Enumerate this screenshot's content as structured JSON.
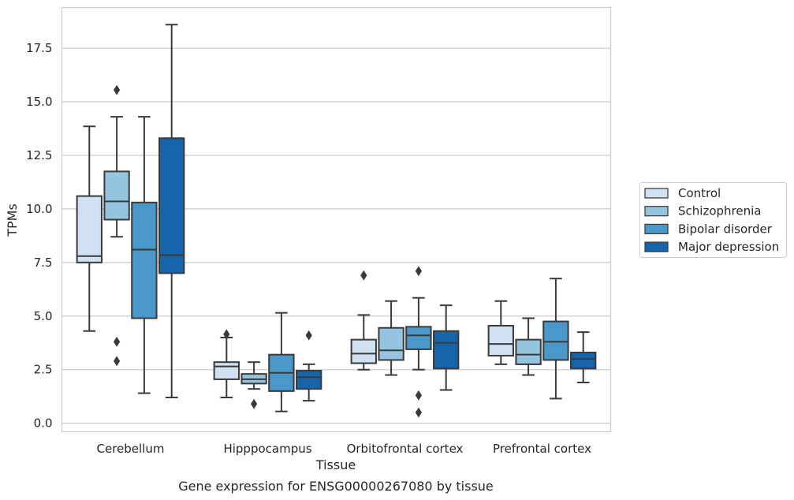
{
  "chart_data": {
    "type": "box",
    "title": "",
    "xlabel": "Tissue",
    "ylabel": "TPMs",
    "caption": "Gene expression for ENSG00000267080 by tissue",
    "ylim": [
      -0.4,
      19.4
    ],
    "yticks": [
      0.0,
      2.5,
      5.0,
      7.5,
      10.0,
      12.5,
      15.0,
      17.5
    ],
    "ytick_labels": [
      "0.0",
      "2.5",
      "5.0",
      "7.5",
      "10.0",
      "12.5",
      "15.0",
      "17.5"
    ],
    "categories": [
      "Cerebellum",
      "Hipppocampus",
      "Orbitofrontal cortex",
      "Prefrontal cortex"
    ],
    "grid": "horizontal",
    "legend_position": "right",
    "series": [
      {
        "name": "Control",
        "color": "#d0e1f2",
        "boxes": [
          {
            "whislo": 4.3,
            "q1": 7.5,
            "med": 7.8,
            "q3": 10.6,
            "whishi": 13.85,
            "fliers": []
          },
          {
            "whislo": 1.2,
            "q1": 2.05,
            "med": 2.65,
            "q3": 2.85,
            "whishi": 4.0,
            "fliers": [
              4.15
            ]
          },
          {
            "whislo": 2.5,
            "q1": 2.8,
            "med": 3.25,
            "q3": 3.9,
            "whishi": 5.05,
            "fliers": [
              6.9
            ]
          },
          {
            "whislo": 2.75,
            "q1": 3.15,
            "med": 3.7,
            "q3": 4.55,
            "whishi": 5.7,
            "fliers": []
          }
        ]
      },
      {
        "name": "Schizophrenia",
        "color": "#94c4df",
        "boxes": [
          {
            "whislo": 8.7,
            "q1": 9.5,
            "med": 10.35,
            "q3": 11.75,
            "whishi": 14.3,
            "fliers": [
              15.55,
              3.8,
              2.9
            ]
          },
          {
            "whislo": 1.6,
            "q1": 1.85,
            "med": 2.05,
            "q3": 2.3,
            "whishi": 2.85,
            "fliers": [
              0.9
            ]
          },
          {
            "whislo": 2.25,
            "q1": 2.95,
            "med": 3.4,
            "q3": 4.45,
            "whishi": 5.7,
            "fliers": []
          },
          {
            "whislo": 2.25,
            "q1": 2.75,
            "med": 3.2,
            "q3": 3.9,
            "whishi": 4.9,
            "fliers": []
          }
        ]
      },
      {
        "name": "Bipolar disorder",
        "color": "#4a98c9",
        "boxes": [
          {
            "whislo": 1.4,
            "q1": 4.9,
            "med": 8.1,
            "q3": 10.3,
            "whishi": 14.3,
            "fliers": []
          },
          {
            "whislo": 0.55,
            "q1": 1.5,
            "med": 2.35,
            "q3": 3.2,
            "whishi": 5.15,
            "fliers": []
          },
          {
            "whislo": 2.5,
            "q1": 3.45,
            "med": 4.1,
            "q3": 4.5,
            "whishi": 5.85,
            "fliers": [
              7.1,
              1.3,
              0.5
            ]
          },
          {
            "whislo": 1.15,
            "q1": 2.95,
            "med": 3.8,
            "q3": 4.75,
            "whishi": 6.75,
            "fliers": []
          }
        ]
      },
      {
        "name": "Major depression",
        "color": "#1764ab",
        "boxes": [
          {
            "whislo": 1.2,
            "q1": 7.0,
            "med": 7.85,
            "q3": 13.3,
            "whishi": 18.6,
            "fliers": []
          },
          {
            "whislo": 1.05,
            "q1": 1.6,
            "med": 2.15,
            "q3": 2.45,
            "whishi": 2.75,
            "fliers": [
              4.1
            ]
          },
          {
            "whislo": 1.55,
            "q1": 2.55,
            "med": 3.75,
            "q3": 4.3,
            "whishi": 5.5,
            "fliers": []
          },
          {
            "whislo": 1.9,
            "q1": 2.55,
            "med": 3.0,
            "q3": 3.3,
            "whishi": 4.25,
            "fliers": []
          }
        ]
      }
    ]
  }
}
